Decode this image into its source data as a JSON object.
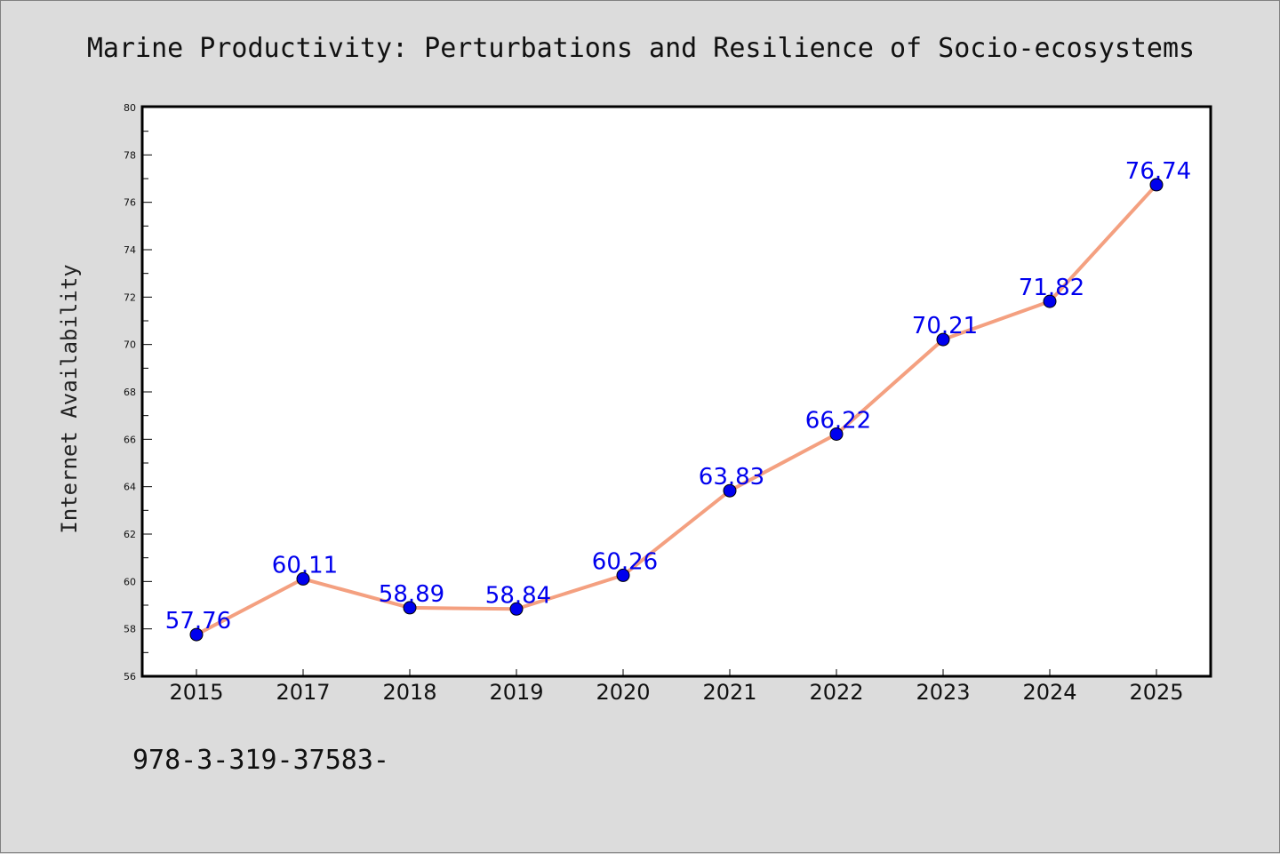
{
  "chart_data": {
    "type": "line",
    "title": "Marine Productivity: Perturbations and Resilience of Socio-ecosystems",
    "xlabel": "",
    "ylabel": "Internet Availability",
    "categories": [
      "2015",
      "2017",
      "2018",
      "2019",
      "2020",
      "2021",
      "2022",
      "2023",
      "2024",
      "2025"
    ],
    "series": [
      {
        "values": [
          57.76,
          60.11,
          58.89,
          58.84,
          60.26,
          63.83,
          66.22,
          70.21,
          71.82,
          76.74
        ],
        "data_labels": [
          "57.76",
          "60.11",
          "58.89",
          "58.84",
          "60.26",
          "63.83",
          "66.22",
          "70.21",
          "71.82",
          "76.74"
        ],
        "line_color": "#f4a080",
        "marker_color": "#0000ee"
      }
    ],
    "ylim": [
      56,
      80
    ],
    "yticks": [
      "56",
      "58",
      "60",
      "62",
      "64",
      "66",
      "68",
      "70",
      "72",
      "74",
      "76",
      "78",
      "80"
    ],
    "grid": false,
    "legend": "none"
  },
  "footer": {
    "text": "978-3-319-37583-"
  },
  "colors": {
    "background": "#dcdcdc",
    "plot_background": "#ffffff",
    "line": "#f4a080",
    "marker": "#0000ee",
    "data_label": "#0000ee"
  }
}
